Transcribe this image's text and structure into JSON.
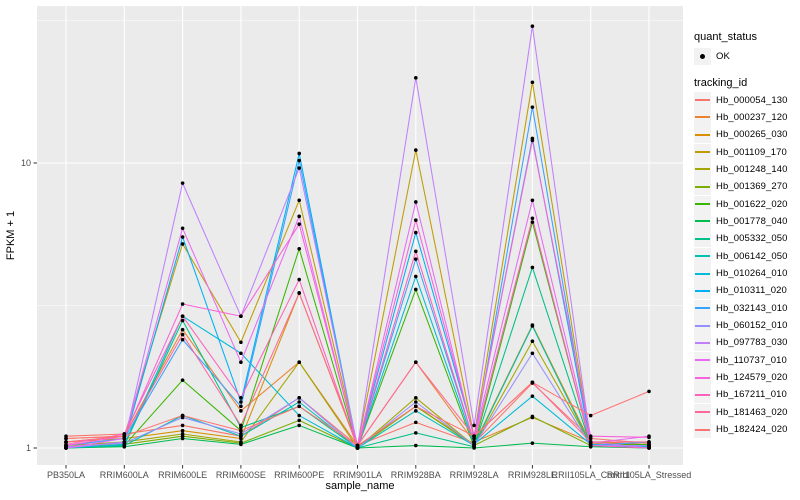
{
  "figure": {
    "background": "#FFFFFF",
    "panel_bg": "#EBEBEB",
    "grid_color": "#FFFFFF",
    "key_bg": "#F2F2F2",
    "tick_label_color": "#4D4D4D",
    "tick_mark_color": "#333333",
    "point_color": "#000000"
  },
  "legend": {
    "quant_status_title": "quant_status",
    "quant_status_ok": "OK",
    "tracking_id_title": "tracking_id"
  },
  "chart_data": {
    "type": "line",
    "title": "",
    "xlabel": "sample_name",
    "ylabel": "FPKM + 1",
    "y_scale": "log10",
    "y_ticks": [
      1,
      10
    ],
    "y_tick_labels": [
      "1",
      "10"
    ],
    "y_minor_breaks": [
      3.162,
      31.62
    ],
    "ylim": [
      0.87,
      35
    ],
    "grid": true,
    "legend_position": "right",
    "categories": [
      "PB350LA",
      "RRIM600LA",
      "RRIM600LE",
      "RRIM600SE",
      "RRIM600PE",
      "RRIM901LA",
      "RRIM928BA",
      "RRIM928LA",
      "RRIM928LE",
      "RRII105LA_Control",
      "RRII105LA_Stressed"
    ],
    "series": [
      {
        "name": "Hb_000054_130",
        "color": "#F8766D",
        "values": [
          1.1,
          1.12,
          1.2,
          1.1,
          1.5,
          1.02,
          1.23,
          1.04,
          1.69,
          1.08,
          1.04
        ]
      },
      {
        "name": "Hb_000237_120",
        "color": "#EA8331",
        "values": [
          1.08,
          1.1,
          2.6,
          1.35,
          2.0,
          1.02,
          2.0,
          1.05,
          1.28,
          1.05,
          1.03
        ]
      },
      {
        "name": "Hb_000265_030",
        "color": "#D89000",
        "values": [
          1.05,
          1.08,
          1.15,
          1.08,
          3.5,
          1.01,
          1.4,
          1.03,
          2.7,
          1.04,
          1.02
        ]
      },
      {
        "name": "Hb_001109_170",
        "color": "#C09B00",
        "values": [
          1.05,
          1.1,
          5.2,
          2.35,
          7.4,
          1.02,
          11.1,
          1.1,
          19.2,
          1.05,
          1.02
        ]
      },
      {
        "name": "Hb_001248_140",
        "color": "#A3A500",
        "values": [
          1.02,
          1.05,
          1.12,
          1.05,
          2.0,
          1.0,
          1.5,
          1.02,
          2.37,
          1.03,
          1.01
        ]
      },
      {
        "name": "Hb_001369_270",
        "color": "#7CAE00",
        "values": [
          1.01,
          1.03,
          1.1,
          1.04,
          1.25,
          1.0,
          1.4,
          1.02,
          1.29,
          1.02,
          1.01
        ]
      },
      {
        "name": "Hb_001622_020",
        "color": "#39B600",
        "values": [
          1.0,
          1.02,
          1.73,
          1.15,
          5.0,
          1.0,
          3.6,
          1.01,
          6.2,
          1.02,
          1.03
        ]
      },
      {
        "name": "Hb_001778_040",
        "color": "#00BB4E",
        "values": [
          1.0,
          1.01,
          1.08,
          1.03,
          1.2,
          1.0,
          1.02,
          1.0,
          1.04,
          1.01,
          1.0
        ]
      },
      {
        "name": "Hb_005332_050",
        "color": "#00C087",
        "values": [
          1.0,
          1.02,
          2.8,
          1.18,
          1.4,
          1.0,
          1.13,
          1.01,
          4.3,
          1.02,
          1.01
        ]
      },
      {
        "name": "Hb_006142_050",
        "color": "#00C0B2",
        "values": [
          1.01,
          1.02,
          1.3,
          1.1,
          1.45,
          1.0,
          1.35,
          1.02,
          2.68,
          1.02,
          1.02
        ]
      },
      {
        "name": "Hb_010264_010",
        "color": "#00BCD8",
        "values": [
          1.0,
          1.03,
          2.9,
          2.15,
          1.3,
          1.0,
          4.0,
          1.03,
          1.52,
          1.03,
          1.01
        ]
      },
      {
        "name": "Hb_010311_020",
        "color": "#00B0F6",
        "values": [
          1.0,
          1.05,
          5.5,
          1.45,
          10.8,
          1.0,
          5.7,
          1.1,
          12.2,
          1.03,
          1.0
        ]
      },
      {
        "name": "Hb_032143_010",
        "color": "#35A2FF",
        "values": [
          1.02,
          1.08,
          2.4,
          1.4,
          10.2,
          1.0,
          4.6,
          1.05,
          15.7,
          1.02,
          1.05
        ]
      },
      {
        "name": "Hb_060152_010",
        "color": "#9590FF",
        "values": [
          1.01,
          1.04,
          1.28,
          1.12,
          1.5,
          1.0,
          1.45,
          1.02,
          2.15,
          1.02,
          1.02
        ]
      },
      {
        "name": "Hb_097783_030",
        "color": "#BF80FF",
        "values": [
          1.0,
          1.05,
          8.5,
          2.9,
          9.6,
          1.01,
          19.9,
          1.2,
          30.2,
          1.05,
          1.0
        ]
      },
      {
        "name": "Hb_110737_010",
        "color": "#E76BF3",
        "values": [
          1.0,
          1.08,
          5.9,
          2.0,
          6.5,
          1.0,
          7.3,
          1.08,
          7.4,
          1.04,
          1.1
        ]
      },
      {
        "name": "Hb_124579_020",
        "color": "#FA62DB",
        "values": [
          1.02,
          1.1,
          3.2,
          2.9,
          6.1,
          1.01,
          6.3,
          1.1,
          12.0,
          1.1,
          1.09
        ]
      },
      {
        "name": "Hb_167211_010",
        "color": "#FF62BC",
        "values": [
          1.03,
          1.12,
          2.9,
          1.5,
          3.9,
          1.0,
          4.9,
          1.05,
          6.4,
          1.02,
          1.0
        ]
      },
      {
        "name": "Hb_181463_020",
        "color": "#FF6A98",
        "values": [
          1.05,
          1.1,
          2.5,
          1.2,
          3.5,
          1.02,
          2.0,
          1.1,
          1.7,
          1.05,
          1.05
        ]
      },
      {
        "name": "Hb_182424_020",
        "color": "#FF7575",
        "values": [
          1.08,
          1.1,
          1.3,
          1.15,
          1.4,
          1.02,
          1.4,
          1.1,
          1.7,
          1.3,
          1.58
        ]
      }
    ]
  }
}
